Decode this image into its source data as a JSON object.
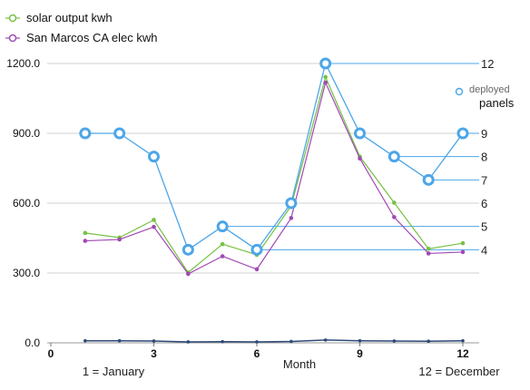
{
  "chart_data": {
    "type": "line",
    "xlabel": "Month",
    "x_note_left": "1 = January",
    "x_note_right": "12 = December",
    "xlim": [
      0,
      12
    ],
    "x_ticks": [
      0,
      3,
      6,
      9,
      12
    ],
    "x_tick_labels": [
      "0",
      "3",
      "6",
      "9",
      "12"
    ],
    "ylim_left": [
      0,
      1200
    ],
    "y_ticks_left": [
      0,
      300,
      600,
      900,
      1200
    ],
    "y_tick_labels_left": [
      "0.0",
      "300.0",
      "600.0",
      "900.0",
      "1200.0"
    ],
    "ylim_right": [
      0,
      12
    ],
    "grid": "horizontal",
    "legend_position": "top-left",
    "series": [
      {
        "name": "solar output kwh",
        "color": "#77c043",
        "axis": "left",
        "x": [
          1,
          2,
          3,
          4,
          5,
          6,
          7,
          8,
          9,
          10,
          11,
          12
        ],
        "values": [
          472,
          452,
          528,
          302,
          424,
          378,
          588,
          1142,
          800,
          602,
          404,
          428
        ]
      },
      {
        "name": "San Marcos CA elec kwh",
        "color": "#a148b4",
        "axis": "left",
        "x": [
          1,
          2,
          3,
          4,
          5,
          6,
          7,
          8,
          9,
          10,
          11,
          12
        ],
        "values": [
          438,
          444,
          498,
          296,
          372,
          316,
          536,
          1118,
          792,
          540,
          384,
          390
        ]
      },
      {
        "name": "deployed panels",
        "color": "#4da6e8",
        "axis": "right",
        "x": [
          1,
          2,
          3,
          4,
          5,
          6,
          7,
          8,
          9,
          10,
          11,
          12
        ],
        "values": [
          9,
          9,
          8,
          4,
          5,
          4,
          6,
          12,
          9,
          8,
          7,
          9
        ]
      }
    ],
    "near_zero_series": [
      {
        "color": "#2e4a78",
        "x": [
          1,
          2,
          3,
          4,
          5,
          6,
          7,
          8,
          9,
          10,
          11,
          12
        ],
        "values": [
          9,
          9,
          8,
          4,
          5,
          4,
          6,
          12,
          9,
          8,
          7,
          9
        ]
      }
    ],
    "right_labels": [
      {
        "text": "12",
        "value": 12,
        "from_x": 8
      },
      {
        "text": "9",
        "value": 9,
        "from_x": 12
      },
      {
        "text": "8",
        "value": 8,
        "from_x": 10
      },
      {
        "text": "7",
        "value": 7,
        "from_x": 11
      },
      {
        "text": "6",
        "value": 6,
        "from_x": null
      },
      {
        "text": "5",
        "value": 5,
        "from_x": 5
      },
      {
        "text": "4",
        "value": 4,
        "from_x": 6
      }
    ],
    "legend_right": {
      "line1": "deployed",
      "line2": "panels"
    }
  }
}
